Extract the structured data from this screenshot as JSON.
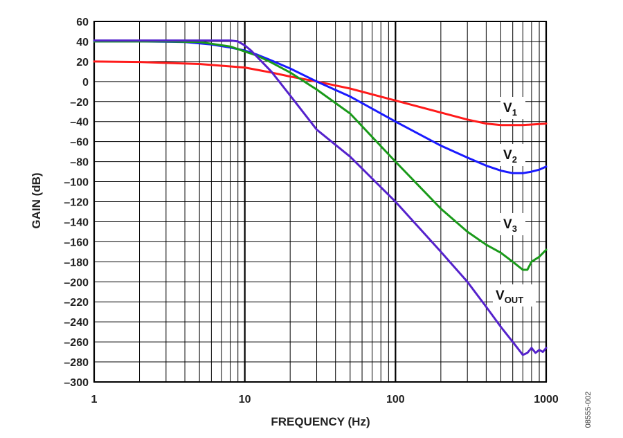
{
  "figure_id": "08555-002",
  "chart_data": {
    "type": "line",
    "title": "",
    "xlabel": "FREQUENCY (Hz)",
    "ylabel": "GAIN (dB)",
    "xscale": "log",
    "xlim": [
      1,
      1000
    ],
    "ylim": [
      -300,
      60
    ],
    "grid": true,
    "x_ticks": [
      1,
      10,
      100,
      1000
    ],
    "x_tick_labels": [
      "1",
      "10",
      "100",
      "1000"
    ],
    "y_ticks": [
      60,
      40,
      20,
      0,
      -20,
      -40,
      -60,
      -80,
      -100,
      -120,
      -140,
      -160,
      -180,
      -200,
      -220,
      -240,
      -260,
      -280,
      -300
    ],
    "y_tick_labels": [
      "60",
      "40",
      "20",
      "0",
      "–20",
      "–40",
      "–60",
      "–80",
      "–100",
      "–120",
      "–140",
      "–160",
      "–180",
      "–200",
      "–220",
      "–240",
      "–260",
      "–280",
      "–300"
    ],
    "series": [
      {
        "key": "v1",
        "name": "V",
        "sub": "1",
        "color": "#ff1a1a",
        "x": [
          1,
          2,
          5,
          10,
          15,
          20,
          30,
          50,
          100,
          200,
          300,
          400,
          500,
          700,
          1000
        ],
        "y": [
          20,
          19.5,
          17.5,
          14,
          9,
          5,
          0,
          -7,
          -19,
          -31,
          -38,
          -42,
          -43.5,
          -43.5,
          -42
        ]
      },
      {
        "key": "v2",
        "name": "V",
        "sub": "2",
        "color": "#1a1aff",
        "x": [
          1,
          2,
          4,
          6,
          8,
          10,
          12,
          15,
          20,
          30,
          50,
          100,
          200,
          300,
          400,
          500,
          600,
          700,
          800,
          900,
          1000
        ],
        "y": [
          40,
          40,
          39.5,
          37,
          34,
          31,
          27,
          21,
          13,
          0,
          -15,
          -40,
          -64,
          -76,
          -84,
          -89,
          -91.5,
          -91.5,
          -90,
          -88,
          -85
        ]
      },
      {
        "key": "v3",
        "name": "V",
        "sub": "3",
        "color": "#1a9a1a",
        "x": [
          1,
          3,
          5,
          8,
          10,
          12,
          15,
          20,
          30,
          50,
          100,
          200,
          300,
          400,
          500,
          600,
          700,
          750,
          800,
          900,
          1000
        ],
        "y": [
          40,
          40,
          39.5,
          35,
          30,
          26,
          19,
          9,
          -8,
          -32,
          -80,
          -127,
          -150,
          -163,
          -171,
          -180,
          -188,
          -188,
          -180,
          -175,
          -168
        ]
      },
      {
        "key": "vout",
        "name": "V",
        "sub": "OUT",
        "color": "#5522cc",
        "x": [
          1,
          3,
          6,
          8,
          9,
          10,
          11,
          12,
          15,
          20,
          30,
          50,
          100,
          200,
          300,
          400,
          500,
          600,
          700,
          750,
          800,
          850,
          900,
          950,
          1000
        ],
        "y": [
          41,
          41,
          41,
          41,
          40,
          36,
          31,
          25,
          10,
          -14,
          -48,
          -75,
          -120,
          -170,
          -200,
          -225,
          -245,
          -260,
          -273,
          -271,
          -266,
          -271,
          -268,
          -270,
          -266
        ]
      }
    ]
  }
}
